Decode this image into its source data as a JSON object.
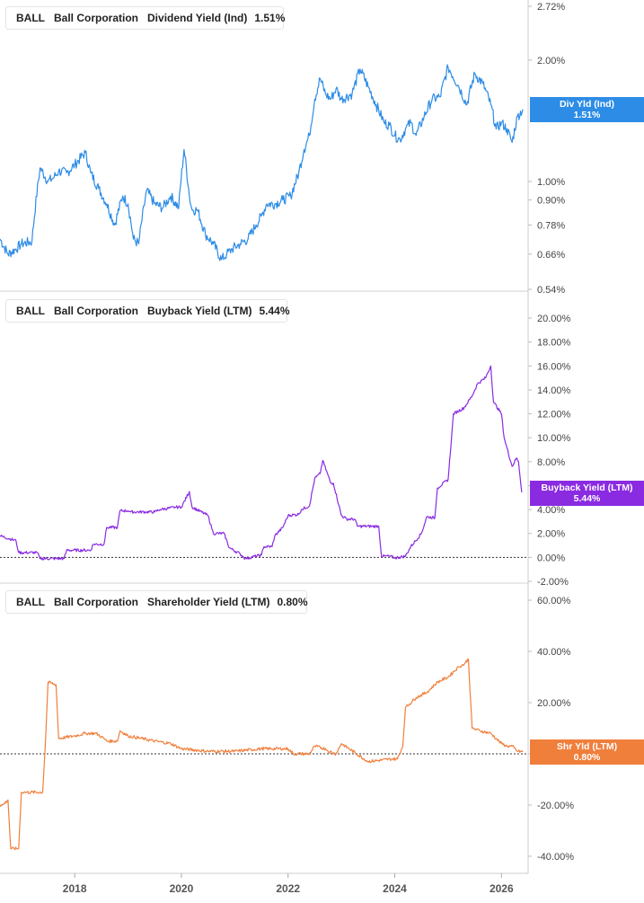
{
  "colors": {
    "dividend": "#2d8ce6",
    "buyback": "#8a2be2",
    "shareholder": "#f07f3c"
  },
  "panels": [
    {
      "ticker": "BALL",
      "company": "Ball Corporation",
      "metric": "Dividend Yield (Ind)",
      "value": "1.51%",
      "end_label": {
        "line1": "Div Yld (Ind)",
        "line2": "1.51%"
      }
    },
    {
      "ticker": "BALL",
      "company": "Ball Corporation",
      "metric": "Buyback Yield (LTM)",
      "value": "5.44%",
      "end_label": {
        "line1": "Buyback Yield (LTM)",
        "line2": "5.44%"
      }
    },
    {
      "ticker": "BALL",
      "company": "Ball Corporation",
      "metric": "Shareholder Yield (LTM)",
      "value": "0.80%",
      "end_label": {
        "line1": "Shr Yld (LTM)",
        "line2": "0.80%"
      }
    }
  ],
  "chart_data": [
    {
      "type": "line",
      "title": "BALL Ball Corporation Dividend Yield (Ind) 1.51%",
      "y_scale": "log",
      "yticks": [
        0.54,
        0.66,
        0.78,
        0.9,
        1.0,
        2.0,
        2.72
      ],
      "ytick_labels": [
        "0.54%",
        "0.66%",
        "0.78%",
        "0.90%",
        "1.00%",
        "2.00%",
        "2.72%"
      ],
      "ylim": [
        0.54,
        2.72
      ],
      "xlim": [
        2016.6,
        2026.5
      ],
      "series": [
        {
          "name": "Dividend Yield (Ind)",
          "x": [
            2016.6,
            2016.75,
            2016.9,
            2017.0,
            2017.2,
            2017.35,
            2017.5,
            2017.6,
            2017.7,
            2017.85,
            2018.0,
            2018.2,
            2018.3,
            2018.45,
            2018.6,
            2018.75,
            2018.9,
            2019.0,
            2019.1,
            2019.2,
            2019.35,
            2019.5,
            2019.65,
            2019.8,
            2019.95,
            2020.05,
            2020.15,
            2020.2,
            2020.3,
            2020.45,
            2020.6,
            2020.75,
            2020.85,
            2020.95,
            2021.1,
            2021.25,
            2021.4,
            2021.5,
            2021.6,
            2021.75,
            2021.9,
            2022.05,
            2022.2,
            2022.3,
            2022.4,
            2022.5,
            2022.6,
            2022.7,
            2022.8,
            2022.9,
            2023.0,
            2023.2,
            2023.35,
            2023.5,
            2023.65,
            2023.8,
            2023.9,
            2024.0,
            2024.1,
            2024.2,
            2024.3,
            2024.4,
            2024.55,
            2024.7,
            2024.85,
            2025.0,
            2025.2,
            2025.35,
            2025.5,
            2025.65,
            2025.8,
            2025.9,
            2026.0,
            2026.1,
            2026.2,
            2026.3,
            2026.4
          ],
          "y": [
            0.72,
            0.66,
            0.68,
            0.7,
            0.71,
            1.08,
            1.0,
            1.02,
            1.06,
            1.05,
            1.1,
            1.18,
            1.05,
            0.96,
            0.88,
            0.78,
            0.92,
            0.88,
            0.72,
            0.7,
            0.95,
            0.88,
            0.86,
            0.92,
            0.86,
            1.2,
            0.92,
            0.85,
            0.85,
            0.74,
            0.7,
            0.64,
            0.66,
            0.68,
            0.7,
            0.72,
            0.78,
            0.82,
            0.88,
            0.88,
            0.9,
            0.92,
            1.05,
            1.2,
            1.3,
            1.6,
            1.8,
            1.65,
            1.6,
            1.7,
            1.6,
            1.65,
            1.9,
            1.72,
            1.55,
            1.4,
            1.38,
            1.3,
            1.27,
            1.35,
            1.4,
            1.3,
            1.45,
            1.6,
            1.62,
            1.92,
            1.72,
            1.55,
            1.85,
            1.75,
            1.55,
            1.35,
            1.4,
            1.35,
            1.25,
            1.45,
            1.51
          ]
        }
      ]
    },
    {
      "type": "line",
      "title": "BALL Ball Corporation Buyback Yield (LTM) 5.44%",
      "yticks": [
        -2,
        0,
        2,
        4,
        6,
        8,
        10,
        12,
        14,
        16,
        18,
        20
      ],
      "ytick_labels": [
        "-2.00%",
        "0.00%",
        "2.00%",
        "4.00%",
        "",
        "8.00%",
        "10.00%",
        "12.00%",
        "14.00%",
        "16.00%",
        "18.00%",
        "20.00%"
      ],
      "ylim": [
        -2,
        20
      ],
      "xlim": [
        2016.6,
        2026.5
      ],
      "series": [
        {
          "name": "Buyback Yield (LTM)",
          "x": [
            2016.6,
            2016.9,
            2016.95,
            2017.3,
            2017.35,
            2017.8,
            2017.85,
            2018.3,
            2018.35,
            2018.55,
            2018.6,
            2018.8,
            2018.85,
            2019.0,
            2019.05,
            2019.5,
            2019.6,
            2019.9,
            2020.0,
            2020.15,
            2020.2,
            2020.5,
            2020.6,
            2020.8,
            2020.9,
            2021.1,
            2021.2,
            2021.5,
            2021.55,
            2021.7,
            2021.75,
            2021.9,
            2022.0,
            2022.2,
            2022.25,
            2022.4,
            2022.5,
            2022.6,
            2022.65,
            2022.8,
            2022.85,
            2023.0,
            2023.1,
            2023.25,
            2023.3,
            2023.7,
            2023.75,
            2023.9,
            2024.0,
            2024.2,
            2024.3,
            2024.5,
            2024.6,
            2024.75,
            2024.8,
            2025.0,
            2025.1,
            2025.3,
            2025.45,
            2025.55,
            2025.7,
            2025.8,
            2025.85,
            2026.0,
            2026.05,
            2026.2,
            2026.28,
            2026.32,
            2026.38
          ],
          "y": [
            1.8,
            1.4,
            0.4,
            0.4,
            -0.1,
            -0.1,
            0.6,
            0.6,
            1.1,
            1.1,
            2.5,
            2.5,
            3.9,
            3.9,
            3.8,
            3.8,
            4.0,
            4.2,
            4.2,
            5.5,
            4.2,
            3.5,
            2.0,
            2.0,
            0.8,
            0.3,
            -0.1,
            0.2,
            0.9,
            0.9,
            1.8,
            2.5,
            3.5,
            3.6,
            4.0,
            4.3,
            6.6,
            7.0,
            8.1,
            6.2,
            6.2,
            3.5,
            3.2,
            3.2,
            2.6,
            2.6,
            0.1,
            0.1,
            -0.05,
            0.1,
            0.9,
            2.0,
            3.4,
            3.3,
            5.8,
            6.5,
            12.0,
            12.5,
            13.5,
            14.5,
            15.0,
            16.0,
            13.0,
            12.0,
            10.0,
            7.6,
            8.3,
            8.0,
            5.44
          ]
        }
      ]
    },
    {
      "type": "line",
      "title": "BALL Ball Corporation Shareholder Yield (LTM) 0.80%",
      "yticks": [
        -40,
        -20,
        0,
        20,
        40,
        60
      ],
      "ytick_labels": [
        "-40.00%",
        "-20.00%",
        "",
        "20.00%",
        "40.00%",
        "60.00%"
      ],
      "ylim": [
        -45,
        63
      ],
      "xlim": [
        2016.6,
        2026.5
      ],
      "series": [
        {
          "name": "Shareholder Yield (LTM)",
          "x": [
            2016.6,
            2016.65,
            2016.75,
            2016.8,
            2016.95,
            2017.0,
            2017.05,
            2017.4,
            2017.45,
            2017.5,
            2017.65,
            2017.7,
            2018.0,
            2018.2,
            2018.4,
            2018.55,
            2018.6,
            2018.8,
            2018.85,
            2019.0,
            2019.5,
            2019.8,
            2020.0,
            2020.5,
            2021.0,
            2021.5,
            2021.9,
            2022.0,
            2022.1,
            2022.4,
            2022.5,
            2022.7,
            2022.75,
            2022.9,
            2023.0,
            2023.5,
            2023.95,
            2024.05,
            2024.15,
            2024.2,
            2024.4,
            2024.6,
            2024.8,
            2025.0,
            2025.2,
            2025.3,
            2025.38,
            2025.45,
            2025.6,
            2025.8,
            2025.9,
            2026.0,
            2026.1,
            2026.2,
            2026.3,
            2026.4
          ],
          "y": [
            -20,
            -20,
            -18,
            -37,
            -37,
            -15,
            -15,
            -15,
            4,
            28,
            27,
            6,
            7,
            8,
            8,
            6,
            5,
            5,
            9,
            7,
            5,
            4,
            2,
            1,
            1,
            2,
            2,
            2,
            0,
            0,
            3,
            2,
            1,
            0,
            4,
            -3,
            -2,
            -2,
            3,
            18,
            22,
            24,
            28,
            30,
            34,
            35,
            37,
            10,
            9,
            8,
            6,
            4,
            3,
            3,
            1,
            0.8
          ]
        }
      ]
    }
  ],
  "x_axis": {
    "ticks": [
      2018,
      2020,
      2022,
      2024,
      2026
    ],
    "labels": [
      "2018",
      "2020",
      "2022",
      "2024",
      "2026"
    ]
  }
}
